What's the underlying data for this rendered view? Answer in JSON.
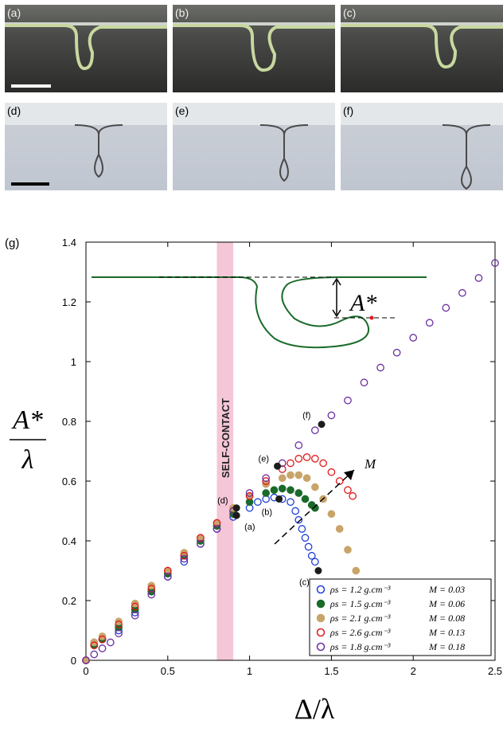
{
  "panels": [
    {
      "label": "(a)",
      "style": "dark"
    },
    {
      "label": "(b)",
      "style": "dark"
    },
    {
      "label": "(c)",
      "style": "dark"
    },
    {
      "label": "(d)",
      "style": "light"
    },
    {
      "label": "(e)",
      "style": "light"
    },
    {
      "label": "(f)",
      "style": "light"
    }
  ],
  "graph_label": "(g)",
  "chart_data": {
    "type": "scatter",
    "xlabel": "Δ/λ",
    "ylabel_top": "A*",
    "ylabel_bottom": "λ",
    "xlim": [
      0,
      2.5
    ],
    "ylim": [
      0,
      1.4
    ],
    "xticks": [
      "0",
      "0.5",
      "1",
      "1.5",
      "2",
      "2.5"
    ],
    "yticks": [
      "0",
      "0.2",
      "0.4",
      "0.6",
      "0.8",
      "1",
      "1.2",
      "1.4"
    ],
    "self_contact_band": {
      "x": [
        0.8,
        0.9
      ],
      "label": "SELF-CONTACT",
      "color": "#f4c6d8"
    },
    "inset_label": "A*",
    "arrow_label": "M",
    "series": [
      {
        "name": "ρs = 1.2 g.cm⁻³",
        "M": "M = 0.03",
        "color": "#1f3fd6",
        "filled": false,
        "x": [
          0.0,
          0.05,
          0.1,
          0.2,
          0.3,
          0.4,
          0.5,
          0.6,
          0.7,
          0.8,
          0.9,
          1.0,
          1.05,
          1.1,
          1.15,
          1.2,
          1.25,
          1.28,
          1.3,
          1.32,
          1.34,
          1.36,
          1.38,
          1.4
        ],
        "y": [
          0.0,
          0.06,
          0.07,
          0.1,
          0.16,
          0.23,
          0.28,
          0.33,
          0.39,
          0.44,
          0.48,
          0.51,
          0.53,
          0.54,
          0.545,
          0.54,
          0.53,
          0.5,
          0.47,
          0.44,
          0.41,
          0.38,
          0.35,
          0.33
        ]
      },
      {
        "name": "ρs = 1.5 g.cm⁻³",
        "M": "M = 0.06",
        "color": "#1a6b2a",
        "filled": true,
        "x": [
          0.0,
          0.05,
          0.1,
          0.2,
          0.3,
          0.4,
          0.5,
          0.6,
          0.7,
          0.8,
          0.9,
          1.0,
          1.1,
          1.15,
          1.2,
          1.25,
          1.3,
          1.34,
          1.38,
          1.4
        ],
        "y": [
          0.0,
          0.05,
          0.07,
          0.11,
          0.17,
          0.23,
          0.29,
          0.35,
          0.4,
          0.45,
          0.49,
          0.53,
          0.56,
          0.57,
          0.575,
          0.57,
          0.56,
          0.54,
          0.52,
          0.51
        ]
      },
      {
        "name": "ρs = 2.1 g.cm⁻³",
        "M": "M = 0.08",
        "color": "#c9a46a",
        "filled": true,
        "x": [
          0.0,
          0.05,
          0.1,
          0.2,
          0.3,
          0.4,
          0.5,
          0.6,
          0.7,
          0.8,
          0.9,
          1.0,
          1.1,
          1.2,
          1.25,
          1.3,
          1.35,
          1.4,
          1.45,
          1.5,
          1.55,
          1.6,
          1.65
        ],
        "y": [
          0.0,
          0.06,
          0.08,
          0.13,
          0.19,
          0.25,
          0.3,
          0.36,
          0.41,
          0.46,
          0.51,
          0.55,
          0.59,
          0.61,
          0.62,
          0.62,
          0.61,
          0.58,
          0.54,
          0.49,
          0.44,
          0.37,
          0.3
        ]
      },
      {
        "name": "ρs = 2.6 g.cm⁻³",
        "M": "M = 0.13",
        "color": "#e0191b",
        "filled": false,
        "x": [
          0.0,
          0.05,
          0.1,
          0.2,
          0.3,
          0.4,
          0.5,
          0.6,
          0.7,
          0.8,
          0.9,
          1.0,
          1.1,
          1.2,
          1.25,
          1.3,
          1.35,
          1.4,
          1.45,
          1.5,
          1.55,
          1.6,
          1.63
        ],
        "y": [
          0.0,
          0.05,
          0.07,
          0.12,
          0.18,
          0.24,
          0.3,
          0.35,
          0.41,
          0.46,
          0.5,
          0.55,
          0.6,
          0.64,
          0.66,
          0.675,
          0.68,
          0.675,
          0.66,
          0.63,
          0.6,
          0.57,
          0.55
        ]
      },
      {
        "name": "ρs = 1.8 g.cm⁻³",
        "M": "M = 0.18",
        "color": "#6a2ea0",
        "filled": false,
        "x": [
          0.0,
          0.05,
          0.1,
          0.15,
          0.2,
          0.3,
          0.4,
          0.5,
          0.6,
          0.7,
          0.8,
          0.9,
          1.0,
          1.1,
          1.2,
          1.3,
          1.4,
          1.5,
          1.6,
          1.7,
          1.8,
          1.9,
          2.0,
          2.1,
          2.2,
          2.3,
          2.4,
          2.5
        ],
        "y": [
          0.0,
          0.02,
          0.04,
          0.06,
          0.09,
          0.15,
          0.22,
          0.28,
          0.34,
          0.39,
          0.44,
          0.5,
          0.56,
          0.61,
          0.66,
          0.72,
          0.77,
          0.82,
          0.87,
          0.93,
          0.98,
          1.03,
          1.08,
          1.13,
          1.18,
          1.23,
          1.28,
          1.33
        ]
      }
    ],
    "markers": [
      {
        "label": "(a)",
        "x": 0.92,
        "y": 0.485
      },
      {
        "label": "(b)",
        "x": 1.18,
        "y": 0.54
      },
      {
        "label": "(c)",
        "x": 1.42,
        "y": 0.3
      },
      {
        "label": "(d)",
        "x": 0.92,
        "y": 0.51
      },
      {
        "label": "(e)",
        "x": 1.17,
        "y": 0.65
      },
      {
        "label": "(f)",
        "x": 1.44,
        "y": 0.79
      }
    ]
  }
}
